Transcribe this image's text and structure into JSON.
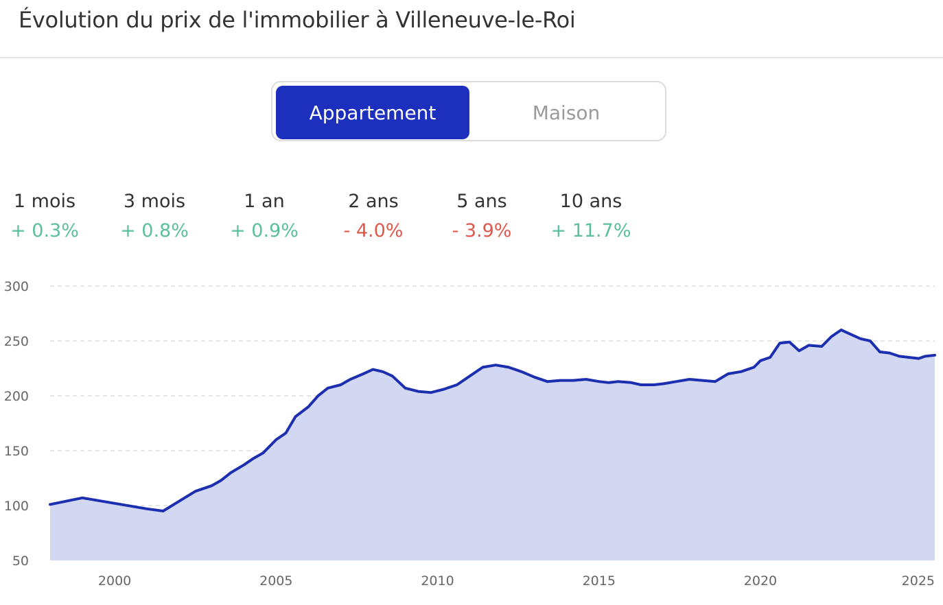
{
  "header": {
    "title": "Évolution du prix de l'immobilier à Villeneuve-le-Roi"
  },
  "toggle": {
    "options": [
      {
        "label": "Appartement",
        "active": true
      },
      {
        "label": "Maison",
        "active": false
      }
    ]
  },
  "stats": [
    {
      "label": "1 mois",
      "value": "+ 0.3%",
      "trend": "up"
    },
    {
      "label": "3 mois",
      "value": "+ 0.8%",
      "trend": "up"
    },
    {
      "label": "1 an",
      "value": "+ 0.9%",
      "trend": "up"
    },
    {
      "label": "2 ans",
      "value": "- 4.0%",
      "trend": "down"
    },
    {
      "label": "5 ans",
      "value": "- 3.9%",
      "trend": "down"
    },
    {
      "label": "10 ans",
      "value": "+ 11.7%",
      "trend": "up"
    }
  ],
  "colors": {
    "accent": "#1c2fbd",
    "line": "#1c2fb0",
    "area": "#d2d7f2",
    "up": "#5bbf99",
    "down": "#e0584b"
  },
  "chart_data": {
    "type": "area",
    "title": "",
    "xlabel": "",
    "ylabel": "",
    "xlim": [
      1998.0,
      2025.4
    ],
    "ylim": [
      50,
      300
    ],
    "xticks": [
      2000,
      2005,
      2010,
      2015,
      2020,
      2025
    ],
    "yticks": [
      50,
      100,
      150,
      200,
      250,
      300
    ],
    "grid": "horizontal-dashed",
    "legend": "none",
    "series": [
      {
        "x": [
          1998.0,
          1999.0,
          2001.0,
          2001.5,
          2002.0,
          2002.5,
          2003.0,
          2003.3,
          2003.6,
          2004.0,
          2004.3,
          2004.6,
          2005.0,
          2005.3,
          2005.6,
          2006.0,
          2006.3,
          2006.6,
          2007.0,
          2007.3,
          2007.7,
          2008.0,
          2008.3,
          2008.6,
          2009.0,
          2009.4,
          2009.8,
          2010.2,
          2010.6,
          2011.0,
          2011.4,
          2011.8,
          2012.2,
          2012.6,
          2013.0,
          2013.4,
          2013.8,
          2014.2,
          2014.6,
          2015.0,
          2015.3,
          2015.6,
          2016.0,
          2016.3,
          2016.7,
          2017.0,
          2017.4,
          2017.8,
          2018.2,
          2018.6,
          2019.0,
          2019.4,
          2019.8,
          2020.0,
          2020.3,
          2020.6,
          2020.9,
          2021.2,
          2021.5,
          2021.9,
          2022.2,
          2022.5,
          2022.8,
          2023.1,
          2023.4,
          2023.7,
          2024.0,
          2024.3,
          2024.6,
          2024.9,
          2025.1,
          2025.4
        ],
        "y": [
          101,
          107,
          97,
          95,
          104,
          113,
          118,
          123,
          130,
          137,
          143,
          148,
          160,
          166,
          181,
          190,
          200,
          207,
          210,
          215,
          220,
          224,
          222,
          218,
          207,
          204,
          203,
          206,
          210,
          218,
          226,
          228,
          226,
          222,
          217,
          213,
          214,
          214,
          215,
          213,
          212,
          213,
          212,
          210,
          210,
          211,
          213,
          215,
          214,
          213,
          220,
          222,
          226,
          232,
          235,
          248,
          249,
          241,
          246,
          245,
          254,
          260,
          256,
          252,
          250,
          240,
          239,
          236,
          235,
          234,
          236,
          237
        ]
      }
    ]
  }
}
